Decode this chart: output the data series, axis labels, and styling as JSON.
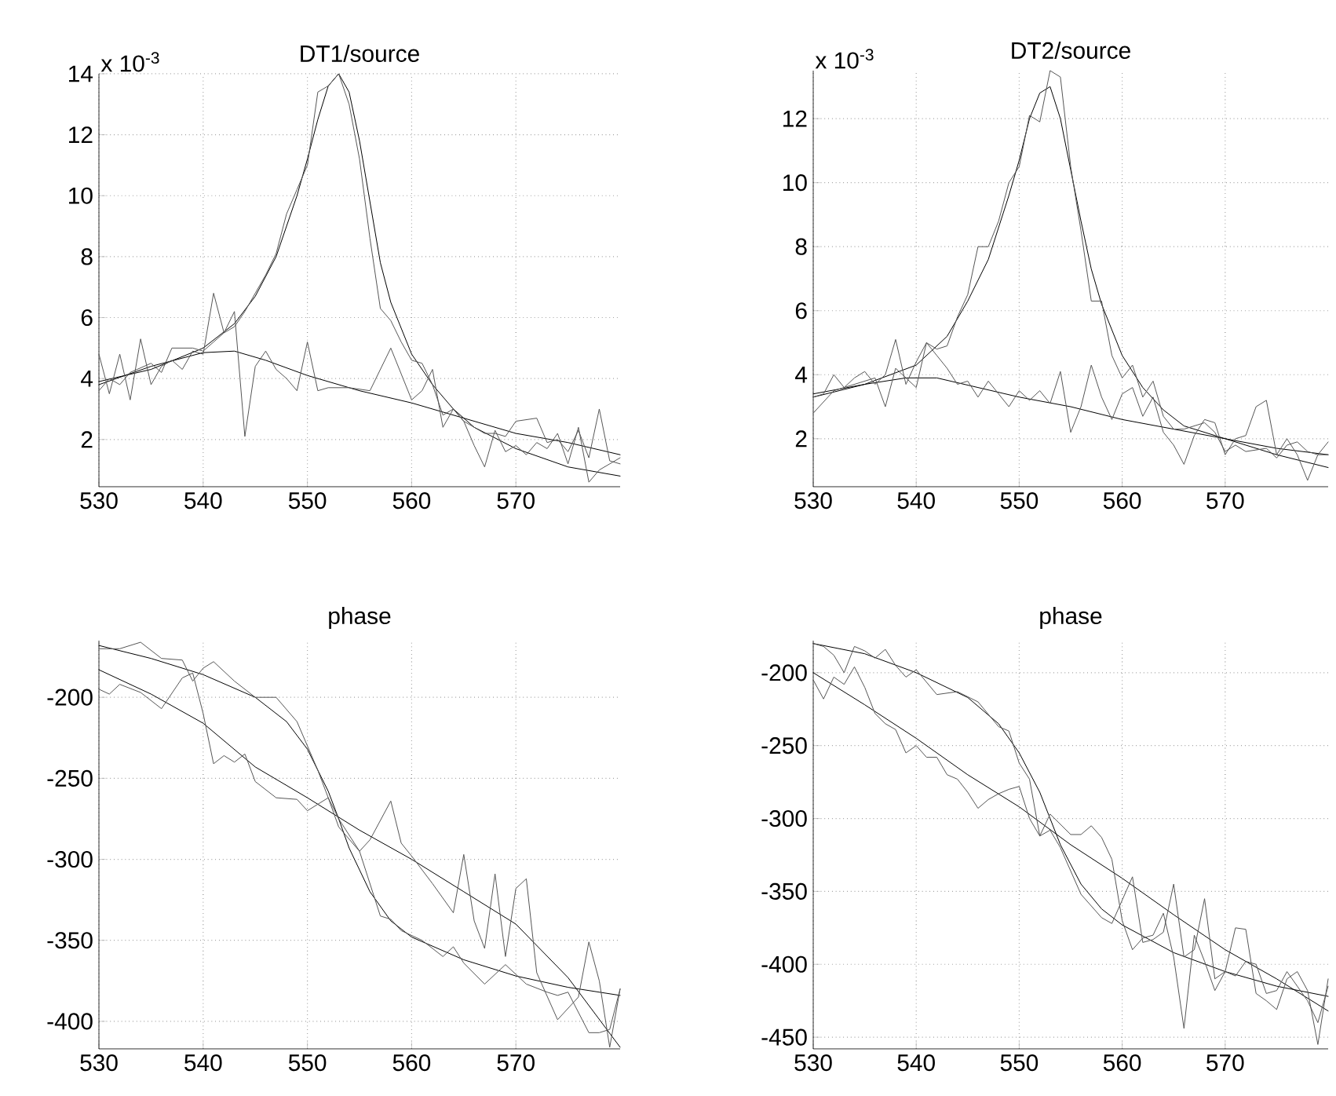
{
  "chart_data": [
    {
      "type": "line",
      "title": "DT1/source",
      "annotations": [
        "x 10$^{-3}$"
      ],
      "xlim": [
        530,
        580
      ],
      "ylim": [
        0.45,
        14
      ],
      "xticks": [
        530,
        540,
        550,
        560,
        570
      ],
      "yticks": [
        2,
        4,
        6,
        8,
        10,
        12,
        14
      ],
      "grid": true,
      "series": [
        {
          "color": "#000000",
          "x": [
            530,
            535,
            540,
            543,
            545,
            547,
            549,
            550,
            551,
            552,
            553,
            554,
            555,
            556,
            557,
            558,
            560,
            562,
            564,
            566,
            570,
            575,
            580
          ],
          "values": [
            3.9,
            4.3,
            5.0,
            5.8,
            6.7,
            8.0,
            10.0,
            11.2,
            12.5,
            13.6,
            14.0,
            13.4,
            11.8,
            9.8,
            7.8,
            6.5,
            4.8,
            3.8,
            3.0,
            2.4,
            1.7,
            1.1,
            0.8
          ]
        },
        {
          "color": "#000000",
          "x": [
            530,
            535,
            540,
            543,
            546,
            550,
            555,
            560,
            565,
            570,
            575,
            580
          ],
          "values": [
            3.8,
            4.4,
            4.85,
            4.9,
            4.6,
            4.1,
            3.6,
            3.2,
            2.7,
            2.2,
            1.9,
            1.5
          ]
        },
        {
          "color": "#555555",
          "x": [
            530,
            531,
            532,
            533,
            535,
            536,
            537,
            539,
            540,
            541,
            542,
            543,
            544,
            545,
            546,
            547,
            548,
            549,
            550,
            551,
            552,
            553,
            554,
            555,
            556,
            557,
            558,
            559,
            560,
            561,
            562,
            563,
            564,
            565,
            566,
            567,
            568,
            569,
            570,
            572,
            573,
            574,
            575,
            576,
            577,
            578,
            579,
            580
          ],
          "values": [
            3.6,
            4.0,
            3.8,
            4.2,
            4.5,
            4.2,
            5.0,
            5.0,
            4.9,
            5.2,
            5.5,
            5.7,
            6.2,
            6.8,
            7.4,
            8.1,
            9.4,
            10.2,
            11.0,
            13.4,
            13.6,
            14.0,
            13.0,
            11.2,
            8.6,
            6.3,
            5.9,
            5.2,
            4.6,
            4.5,
            3.8,
            2.8,
            3.0,
            2.6,
            2.4,
            2.2,
            2.2,
            2.1,
            2.6,
            2.7,
            1.9,
            2.0,
            1.6,
            2.3,
            1.4,
            3.0,
            1.3,
            1.2
          ]
        },
        {
          "color": "#555555",
          "x": [
            530,
            531,
            532,
            533,
            534,
            535,
            536,
            537,
            538,
            539,
            540,
            541,
            542,
            543,
            544,
            545,
            546,
            547,
            548,
            549,
            550,
            551,
            552,
            554,
            556,
            558,
            560,
            561,
            562,
            563,
            564,
            565,
            566,
            567,
            568,
            569,
            570,
            571,
            572,
            573,
            574,
            575,
            576,
            577,
            578,
            579,
            580
          ],
          "values": [
            4.8,
            3.5,
            4.8,
            3.3,
            5.3,
            3.8,
            4.4,
            4.6,
            4.3,
            4.9,
            4.8,
            6.8,
            5.5,
            6.2,
            2.1,
            4.4,
            4.9,
            4.3,
            4.0,
            3.6,
            5.2,
            3.6,
            3.7,
            3.7,
            3.6,
            5.0,
            3.3,
            3.6,
            4.3,
            2.4,
            3.0,
            2.6,
            1.8,
            1.1,
            2.3,
            1.6,
            1.8,
            1.5,
            1.9,
            1.7,
            2.2,
            1.2,
            2.4,
            0.6,
            1.0,
            1.2,
            1.4
          ]
        }
      ]
    },
    {
      "type": "line",
      "title": "DT2/source",
      "annotations": [
        "x 10$^{-3}$"
      ],
      "xlim": [
        530,
        580
      ],
      "ylim": [
        0.5,
        13.5
      ],
      "xticks": [
        530,
        540,
        550,
        560,
        570
      ],
      "yticks": [
        2,
        4,
        6,
        8,
        10,
        12
      ],
      "grid": true,
      "series": [
        {
          "color": "#000000",
          "x": [
            530,
            535,
            540,
            543,
            545,
            547,
            549,
            550,
            551,
            552,
            553,
            554,
            555,
            556,
            557,
            558,
            560,
            562,
            564,
            566,
            570,
            575,
            580
          ],
          "values": [
            3.4,
            3.7,
            4.3,
            5.2,
            6.3,
            7.6,
            9.6,
            10.7,
            12.0,
            12.8,
            13.0,
            12.0,
            10.4,
            8.8,
            7.3,
            6.2,
            4.6,
            3.6,
            2.9,
            2.4,
            2.0,
            1.5,
            1.1
          ]
        },
        {
          "color": "#000000",
          "x": [
            530,
            535,
            539,
            542,
            546,
            550,
            555,
            560,
            565,
            570,
            575,
            580
          ],
          "values": [
            3.3,
            3.7,
            3.9,
            3.9,
            3.6,
            3.3,
            3.0,
            2.6,
            2.3,
            2.0,
            1.7,
            1.5
          ]
        },
        {
          "color": "#555555",
          "x": [
            530,
            532,
            534,
            536,
            537,
            538,
            540,
            541,
            542,
            543,
            544,
            545,
            546,
            547,
            548,
            549,
            550,
            551,
            552,
            553,
            554,
            555,
            556,
            557,
            558,
            559,
            560,
            561,
            562,
            563,
            564,
            565,
            566,
            568,
            569,
            570,
            571,
            572,
            574,
            575,
            576,
            577,
            578,
            579,
            580
          ],
          "values": [
            2.8,
            3.5,
            3.7,
            3.9,
            3.0,
            4.2,
            3.6,
            5.0,
            4.8,
            4.9,
            5.8,
            6.5,
            8.0,
            8.0,
            8.8,
            10.0,
            10.5,
            12.1,
            11.9,
            13.5,
            13.3,
            10.5,
            8.5,
            6.3,
            6.3,
            4.6,
            3.9,
            4.3,
            3.3,
            3.8,
            2.7,
            2.3,
            2.3,
            2.5,
            2.2,
            1.6,
            1.8,
            1.6,
            1.7,
            1.4,
            1.8,
            1.9,
            1.6,
            1.5,
            1.5
          ]
        },
        {
          "color": "#555555",
          "x": [
            530,
            531,
            532,
            533,
            534,
            535,
            536,
            537,
            538,
            539,
            540,
            541,
            542,
            543,
            544,
            545,
            546,
            547,
            548,
            549,
            550,
            551,
            552,
            553,
            554,
            555,
            556,
            557,
            558,
            559,
            560,
            561,
            562,
            563,
            564,
            565,
            566,
            567,
            568,
            569,
            570,
            571,
            572,
            573,
            574,
            575,
            576,
            577,
            578,
            579,
            580
          ],
          "values": [
            3.3,
            3.4,
            4.0,
            3.6,
            3.9,
            4.1,
            3.7,
            4.0,
            5.1,
            3.7,
            4.4,
            5.0,
            4.6,
            4.2,
            3.7,
            3.8,
            3.3,
            3.8,
            3.4,
            3.0,
            3.5,
            3.2,
            3.5,
            3.1,
            4.1,
            2.2,
            3.0,
            4.3,
            3.3,
            2.6,
            3.4,
            3.6,
            2.7,
            3.3,
            2.2,
            1.8,
            1.2,
            2.1,
            2.6,
            2.5,
            1.5,
            2.0,
            2.1,
            3.0,
            3.2,
            1.5,
            2.0,
            1.5,
            0.7,
            1.5,
            1.9
          ]
        }
      ]
    },
    {
      "type": "line",
      "title": "phase",
      "xlim": [
        530,
        580
      ],
      "ylim": [
        -417,
        -165
      ],
      "xticks": [
        530,
        540,
        550,
        560,
        570
      ],
      "yticks": [
        -400,
        -350,
        -300,
        -250,
        -200
      ],
      "grid": true,
      "series": [
        {
          "color": "#000000",
          "x": [
            530,
            535,
            540,
            545,
            548,
            550,
            552,
            553,
            554,
            556,
            558,
            560,
            565,
            570,
            575,
            580
          ],
          "values": [
            -168,
            -176,
            -186,
            -200,
            -215,
            -232,
            -258,
            -275,
            -293,
            -320,
            -338,
            -348,
            -362,
            -372,
            -379,
            -384
          ]
        },
        {
          "color": "#000000",
          "x": [
            530,
            535,
            540,
            545,
            550,
            555,
            560,
            565,
            570,
            575,
            580
          ],
          "values": [
            -183,
            -198,
            -216,
            -243,
            -262,
            -282,
            -300,
            -320,
            -340,
            -373,
            -416
          ]
        },
        {
          "color": "#555555",
          "x": [
            530,
            532,
            534,
            536,
            538,
            539,
            540,
            541,
            543,
            545,
            547,
            549,
            551,
            552,
            553,
            555,
            557,
            558,
            559,
            561,
            563,
            564,
            565,
            567,
            569,
            571,
            573,
            574,
            575,
            577,
            578,
            579,
            580
          ],
          "values": [
            -170,
            -170,
            -166,
            -176,
            -177,
            -190,
            -182,
            -178,
            -190,
            -200,
            -200,
            -215,
            -245,
            -262,
            -275,
            -295,
            -335,
            -337,
            -344,
            -350,
            -360,
            -354,
            -364,
            -377,
            -365,
            -377,
            -382,
            -384,
            -382,
            -407,
            -407,
            -405,
            -380
          ]
        },
        {
          "color": "#555555",
          "x": [
            530,
            531,
            532,
            534,
            536,
            538,
            539,
            540,
            541,
            542,
            543,
            544,
            545,
            547,
            549,
            550,
            552,
            553,
            555,
            556,
            558,
            559,
            560,
            562,
            564,
            565,
            566,
            567,
            568,
            569,
            570,
            571,
            572,
            574,
            576,
            577,
            578,
            579,
            580
          ],
          "values": [
            -195,
            -198,
            -192,
            -197,
            -207,
            -188,
            -185,
            -210,
            -241,
            -236,
            -240,
            -235,
            -252,
            -262,
            -263,
            -270,
            -262,
            -280,
            -295,
            -288,
            -264,
            -290,
            -298,
            -315,
            -333,
            -297,
            -338,
            -355,
            -309,
            -360,
            -318,
            -312,
            -370,
            -399,
            -385,
            -351,
            -375,
            -416,
            -380
          ]
        }
      ]
    },
    {
      "type": "line",
      "title": "phase",
      "xlim": [
        530,
        580
      ],
      "ylim": [
        -458,
        -178
      ],
      "xticks": [
        530,
        540,
        550,
        560,
        570
      ],
      "yticks": [
        -450,
        -400,
        -350,
        -300,
        -250,
        -200
      ],
      "grid": true,
      "series": [
        {
          "color": "#000000",
          "x": [
            530,
            535,
            540,
            545,
            548,
            550,
            552,
            553,
            554,
            556,
            558,
            560,
            565,
            570,
            575,
            580
          ],
          "values": [
            -180,
            -187,
            -200,
            -217,
            -235,
            -255,
            -282,
            -300,
            -318,
            -345,
            -362,
            -373,
            -392,
            -405,
            -415,
            -422
          ]
        },
        {
          "color": "#000000",
          "x": [
            530,
            535,
            540,
            545,
            550,
            555,
            560,
            565,
            570,
            575,
            580
          ],
          "values": [
            -200,
            -222,
            -245,
            -270,
            -292,
            -318,
            -341,
            -366,
            -390,
            -410,
            -432
          ]
        },
        {
          "color": "#555555",
          "x": [
            530,
            531,
            532,
            533,
            534,
            535,
            536,
            537,
            538,
            539,
            540,
            542,
            544,
            546,
            548,
            549,
            550,
            551,
            552,
            553,
            554,
            556,
            558,
            559,
            561,
            562,
            563,
            564,
            565,
            566,
            567,
            568,
            569,
            570,
            571,
            572,
            573,
            574,
            575,
            576,
            577,
            578,
            579,
            580
          ],
          "values": [
            -180,
            -182,
            -188,
            -200,
            -182,
            -185,
            -190,
            -184,
            -195,
            -203,
            -198,
            -215,
            -213,
            -220,
            -237,
            -240,
            -262,
            -273,
            -312,
            -308,
            -320,
            -352,
            -368,
            -372,
            -340,
            -385,
            -383,
            -378,
            -345,
            -395,
            -390,
            -355,
            -410,
            -405,
            -375,
            -376,
            -420,
            -425,
            -431,
            -410,
            -405,
            -418,
            -455,
            -410
          ]
        },
        {
          "color": "#555555",
          "x": [
            530,
            531,
            532,
            533,
            534,
            535,
            536,
            537,
            538,
            539,
            540,
            541,
            542,
            543,
            544,
            545,
            546,
            547,
            548,
            549,
            550,
            551,
            552,
            553,
            555,
            556,
            557,
            558,
            559,
            560,
            561,
            562,
            563,
            564,
            565,
            566,
            567,
            568,
            569,
            570,
            571,
            572,
            573,
            574,
            575,
            576,
            577,
            578,
            579,
            580
          ],
          "values": [
            -205,
            -218,
            -203,
            -208,
            -196,
            -210,
            -228,
            -235,
            -239,
            -255,
            -250,
            -258,
            -258,
            -270,
            -273,
            -282,
            -293,
            -287,
            -283,
            -280,
            -278,
            -300,
            -312,
            -297,
            -311,
            -311,
            -305,
            -313,
            -328,
            -370,
            -390,
            -382,
            -380,
            -365,
            -395,
            -444,
            -380,
            -398,
            -418,
            -405,
            -408,
            -398,
            -400,
            -420,
            -418,
            -405,
            -415,
            -425,
            -440,
            -415
          ]
        }
      ]
    }
  ]
}
